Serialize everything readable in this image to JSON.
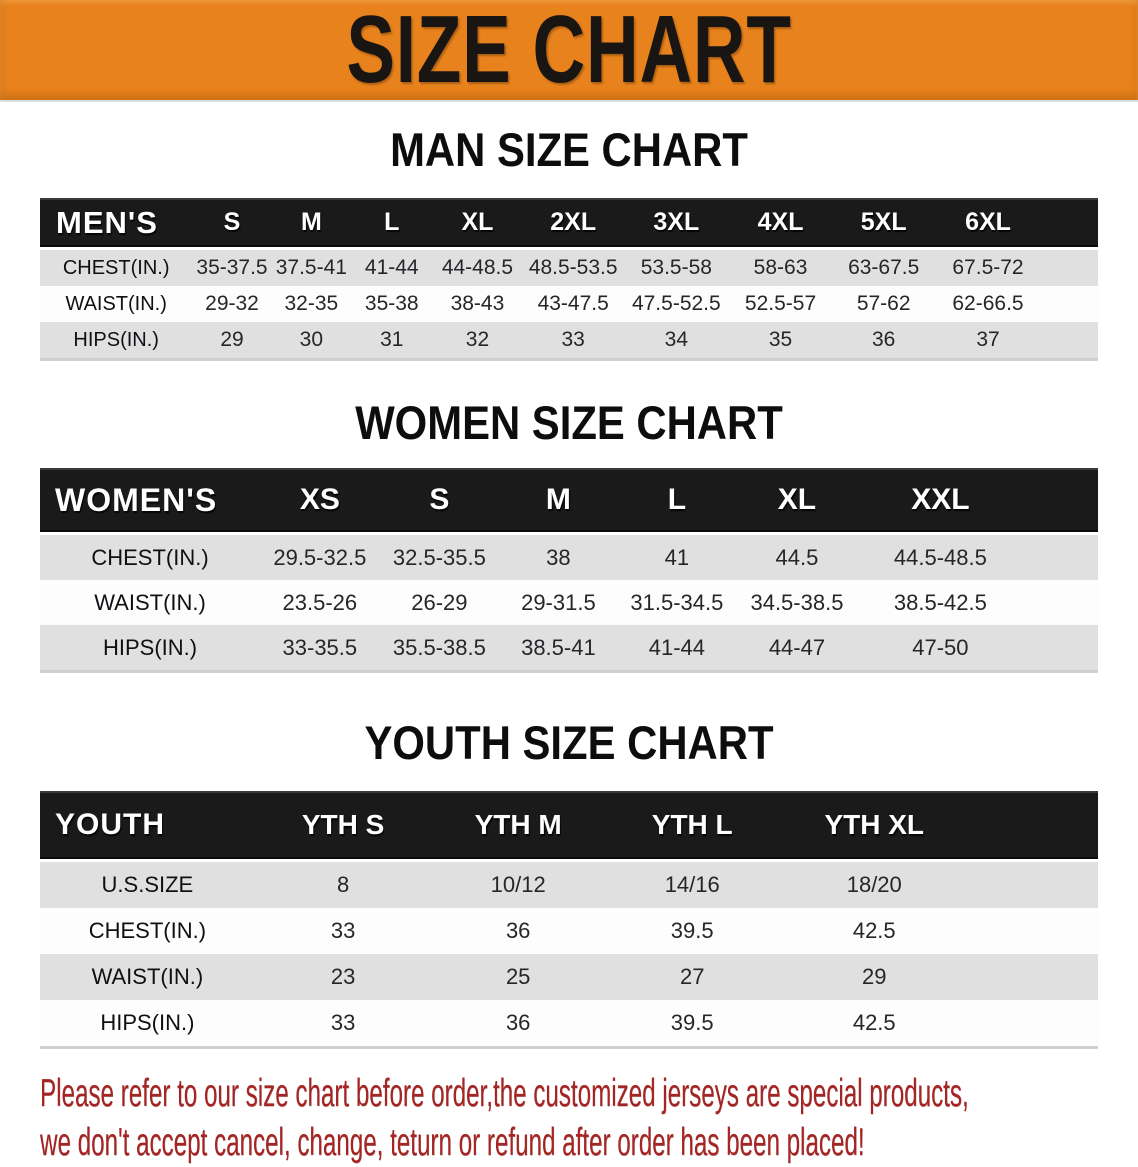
{
  "banner": {
    "title": "SIZE CHART"
  },
  "sections": [
    {
      "heading": "MAN SIZE CHART",
      "table": {
        "header": [
          "MEN'S",
          "S",
          "M",
          "L",
          "XL",
          "2XL",
          "3XL",
          "4XL",
          "5XL",
          "6XL"
        ],
        "rows": [
          {
            "label": "CHEST(IN.)",
            "values": [
              "35-37.5",
              "37.5-41",
              "41-44",
              "44-48.5",
              "48.5-53.5",
              "53.5-58",
              "58-63",
              "63-67.5",
              "67.5-72"
            ]
          },
          {
            "label": "WAIST(IN.)",
            "values": [
              "29-32",
              "32-35",
              "35-38",
              "38-43",
              "43-47.5",
              "47.5-52.5",
              "52.5-57",
              "57-62",
              "62-66.5"
            ]
          },
          {
            "label": "HIPS(IN.)",
            "values": [
              "29",
              "30",
              "31",
              "32",
              "33",
              "34",
              "35",
              "36",
              "37"
            ]
          }
        ]
      }
    },
    {
      "heading": "WOMEN SIZE CHART",
      "table": {
        "header": [
          "WOMEN'S",
          "XS",
          "S",
          "M",
          "L",
          "XL",
          "XXL"
        ],
        "rows": [
          {
            "label": "CHEST(IN.)",
            "values": [
              "29.5-32.5",
              "32.5-35.5",
              "38",
              "41",
              "44.5",
              "44.5-48.5"
            ]
          },
          {
            "label": "WAIST(IN.)",
            "values": [
              "23.5-26",
              "26-29",
              "29-31.5",
              "31.5-34.5",
              "34.5-38.5",
              "38.5-42.5"
            ]
          },
          {
            "label": "HIPS(IN.)",
            "values": [
              "33-35.5",
              "35.5-38.5",
              "38.5-41",
              "41-44",
              "44-47",
              "47-50"
            ]
          }
        ]
      }
    },
    {
      "heading": "YOUTH SIZE CHART",
      "table": {
        "header": [
          "YOUTH",
          "YTH S",
          "YTH M",
          "YTH L",
          "YTH XL"
        ],
        "rows": [
          {
            "label": "U.S.SIZE",
            "values": [
              "8",
              "10/12",
              "14/16",
              "18/20"
            ]
          },
          {
            "label": "CHEST(IN.)",
            "values": [
              "33",
              "36",
              "39.5",
              "42.5"
            ]
          },
          {
            "label": "WAIST(IN.)",
            "values": [
              "23",
              "25",
              "27",
              "29"
            ]
          },
          {
            "label": "HIPS(IN.)",
            "values": [
              "33",
              "36",
              "39.5",
              "42.5"
            ]
          }
        ]
      }
    }
  ],
  "disclaimer": {
    "line1": "Please refer to our size chart before order,the customized jerseys are special products,",
    "line2": "we don't accept cancel, change, teturn or refund after order has been placed!"
  },
  "colors": {
    "banner_orange": "#E8821C",
    "header_bar_black": "#1A1A1A",
    "row_gray": "#E0E0E0",
    "row_white": "#FDFDFD",
    "disclaimer_red": "#A42523",
    "heading_black": "#0D0D0D"
  }
}
